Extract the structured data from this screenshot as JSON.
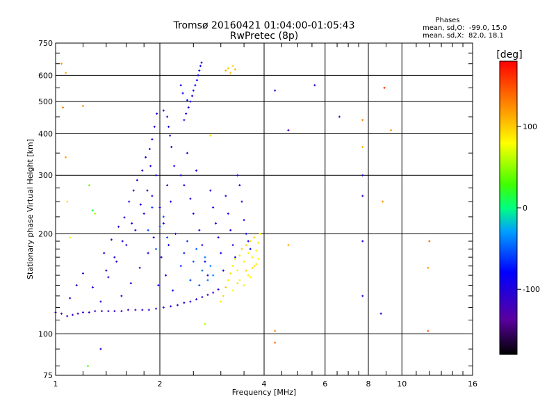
{
  "chart_data": {
    "type": "scatter",
    "title": "Tromsø 20160421 01:04:00-01:05:43",
    "subtitle": "RwPretec (8p)",
    "xlabel": "Frequency [MHz]",
    "ylabel": "Stationary phase Virtual Height [km]",
    "x_scale": "log",
    "y_scale": "log",
    "xlim": [
      1,
      16
    ],
    "ylim": [
      75,
      750
    ],
    "x_ticks": [
      1,
      2,
      4,
      8,
      16
    ],
    "x_minor_ticks": [
      6,
      10
    ],
    "y_ticks": [
      75,
      100,
      200,
      300,
      400,
      500,
      600,
      750
    ],
    "grid": true,
    "stats": {
      "heading": "Phases",
      "line1": "mean, sd,O:  -99.0, 15.0",
      "line2": "mean, sd,X:  82.0, 18.1"
    },
    "colorbar": {
      "label": "[deg]",
      "range": [
        -180,
        180
      ],
      "ticks": [
        100,
        0,
        -100
      ]
    },
    "series": [
      {
        "marker_color": "phase",
        "points": [
          [
            1.0,
            116,
            -115
          ],
          [
            1.04,
            115,
            -118
          ],
          [
            1.08,
            113,
            -120
          ],
          [
            1.12,
            114,
            -117
          ],
          [
            1.16,
            115,
            -116
          ],
          [
            1.2,
            116,
            -114
          ],
          [
            1.25,
            116,
            -112
          ],
          [
            1.3,
            117,
            -115
          ],
          [
            1.36,
            117,
            -113
          ],
          [
            1.42,
            117,
            -111
          ],
          [
            1.48,
            117,
            -114
          ],
          [
            1.55,
            117,
            -112
          ],
          [
            1.62,
            118,
            -110
          ],
          [
            1.7,
            118,
            -113
          ],
          [
            1.78,
            118,
            -111
          ],
          [
            1.86,
            118,
            -109
          ],
          [
            1.95,
            119,
            -112
          ],
          [
            2.05,
            120,
            -110
          ],
          [
            2.15,
            121,
            -108
          ],
          [
            2.25,
            122,
            -110
          ],
          [
            2.35,
            124,
            -107
          ],
          [
            2.45,
            125,
            -109
          ],
          [
            2.55,
            127,
            -106
          ],
          [
            2.65,
            129,
            -108
          ],
          [
            2.75,
            131,
            -105
          ],
          [
            2.85,
            133,
            -107
          ],
          [
            2.95,
            136,
            -104
          ],
          [
            1.1,
            128,
            -110
          ],
          [
            1.15,
            140,
            -105
          ],
          [
            1.2,
            152,
            -108
          ],
          [
            1.28,
            138,
            -100
          ],
          [
            1.35,
            125,
            -112
          ],
          [
            1.42,
            148,
            -103
          ],
          [
            1.5,
            165,
            -106
          ],
          [
            1.55,
            130,
            -98
          ],
          [
            1.6,
            185,
            -104
          ],
          [
            1.65,
            142,
            -100
          ],
          [
            1.7,
            205,
            -102
          ],
          [
            1.75,
            158,
            -97
          ],
          [
            1.8,
            230,
            -105
          ],
          [
            1.85,
            175,
            -96
          ],
          [
            1.9,
            260,
            -103
          ],
          [
            1.92,
            195,
            -95
          ],
          [
            1.95,
            300,
            -100
          ],
          [
            1.98,
            140,
            -90
          ],
          [
            2.0,
            240,
            -98
          ],
          [
            2.02,
            170,
            -88
          ],
          [
            2.05,
            215,
            -92
          ],
          [
            2.08,
            150,
            -85
          ],
          [
            2.1,
            280,
            -96
          ],
          [
            2.12,
            185,
            -84
          ],
          [
            2.15,
            250,
            -94
          ],
          [
            2.18,
            135,
            -82
          ],
          [
            2.2,
            320,
            -99
          ],
          [
            2.22,
            200,
            -86
          ],
          [
            1.38,
            175,
            -104
          ],
          [
            1.45,
            192,
            -108
          ],
          [
            1.52,
            210,
            -102
          ],
          [
            1.58,
            224,
            -100
          ],
          [
            1.63,
            250,
            -106
          ],
          [
            1.68,
            270,
            -101
          ],
          [
            1.72,
            290,
            -99
          ],
          [
            1.78,
            310,
            -103
          ],
          [
            1.82,
            340,
            -98
          ],
          [
            1.87,
            360,
            -100
          ],
          [
            1.9,
            385,
            -97
          ],
          [
            1.93,
            420,
            -96
          ],
          [
            1.96,
            460,
            -98
          ],
          [
            1.88,
            320,
            -94
          ],
          [
            1.84,
            270,
            -92
          ],
          [
            1.76,
            245,
            -95
          ],
          [
            1.66,
            215,
            -97
          ],
          [
            1.56,
            190,
            -99
          ],
          [
            1.48,
            170,
            -101
          ],
          [
            1.4,
            155,
            -103
          ],
          [
            2.3,
            300,
            -102
          ],
          [
            2.35,
            280,
            -100
          ],
          [
            2.4,
            350,
            -101
          ],
          [
            2.45,
            255,
            -98
          ],
          [
            2.5,
            230,
            -96
          ],
          [
            2.55,
            310,
            -99
          ],
          [
            2.6,
            205,
            -94
          ],
          [
            2.65,
            185,
            -92
          ],
          [
            2.7,
            165,
            -90
          ],
          [
            2.75,
            150,
            -88
          ],
          [
            2.8,
            270,
            -97
          ],
          [
            2.85,
            240,
            -95
          ],
          [
            2.9,
            215,
            -93
          ],
          [
            2.95,
            195,
            -91
          ],
          [
            3.0,
            175,
            -89
          ],
          [
            3.05,
            155,
            -86
          ],
          [
            3.1,
            260,
            -98
          ],
          [
            3.15,
            230,
            -96
          ],
          [
            3.2,
            205,
            -94
          ],
          [
            3.25,
            185,
            -92
          ],
          [
            3.3,
            170,
            -90
          ],
          [
            3.35,
            300,
            -99
          ],
          [
            3.4,
            280,
            -97
          ],
          [
            3.45,
            250,
            -95
          ],
          [
            3.5,
            220,
            -93
          ],
          [
            3.55,
            200,
            -91
          ],
          [
            3.6,
            190,
            -89
          ],
          [
            3.65,
            180,
            -87
          ],
          [
            2.3,
            160,
            -70
          ],
          [
            2.35,
            175,
            -65
          ],
          [
            2.4,
            190,
            -60
          ],
          [
            2.45,
            145,
            -55
          ],
          [
            2.5,
            165,
            -50
          ],
          [
            2.55,
            180,
            -48
          ],
          [
            2.6,
            140,
            -52
          ],
          [
            2.65,
            155,
            -45
          ],
          [
            2.7,
            170,
            -42
          ],
          [
            2.75,
            145,
            -40
          ],
          [
            2.8,
            160,
            -38
          ],
          [
            2.85,
            150,
            -36
          ],
          [
            2.0,
            210,
            -62
          ],
          [
            2.05,
            225,
            -58
          ],
          [
            2.1,
            195,
            -55
          ],
          [
            1.9,
            240,
            -60
          ],
          [
            1.85,
            205,
            -57
          ],
          [
            1.95,
            180,
            -50
          ],
          [
            2.35,
            440,
            -95
          ],
          [
            2.38,
            460,
            -93
          ],
          [
            2.42,
            480,
            -92
          ],
          [
            2.45,
            500,
            -90
          ],
          [
            2.48,
            520,
            -89
          ],
          [
            2.5,
            540,
            -88
          ],
          [
            2.53,
            560,
            -87
          ],
          [
            2.56,
            580,
            -86
          ],
          [
            2.58,
            600,
            -85
          ],
          [
            2.6,
            620,
            -84
          ],
          [
            2.62,
            640,
            -83
          ],
          [
            2.64,
            655,
            -82
          ],
          [
            2.3,
            560,
            -80
          ],
          [
            2.33,
            530,
            -78
          ],
          [
            2.4,
            505,
            -76
          ],
          [
            2.1,
            450,
            -90
          ],
          [
            2.12,
            420,
            -92
          ],
          [
            2.14,
            395,
            -94
          ],
          [
            2.16,
            365,
            -96
          ],
          [
            2.05,
            470,
            -98
          ],
          [
            3.0,
            125,
            90
          ],
          [
            3.05,
            130,
            95
          ],
          [
            3.1,
            138,
            100
          ],
          [
            3.15,
            145,
            85
          ],
          [
            3.2,
            152,
            92
          ],
          [
            3.25,
            160,
            88
          ],
          [
            3.3,
            168,
            96
          ],
          [
            3.35,
            155,
            82
          ],
          [
            3.4,
            172,
            90
          ],
          [
            3.45,
            180,
            98
          ],
          [
            3.5,
            165,
            86
          ],
          [
            3.55,
            185,
            94
          ],
          [
            3.6,
            175,
            80
          ],
          [
            3.65,
            190,
            92
          ],
          [
            3.7,
            170,
            88
          ],
          [
            3.75,
            195,
            96
          ],
          [
            3.8,
            178,
            84
          ],
          [
            3.85,
            188,
            90
          ],
          [
            3.9,
            200,
            86
          ],
          [
            3.4,
            145,
            78
          ],
          [
            3.5,
            140,
            84
          ],
          [
            3.6,
            150,
            88
          ],
          [
            3.7,
            158,
            92
          ],
          [
            3.8,
            162,
            86
          ],
          [
            3.25,
            135,
            80
          ],
          [
            3.35,
            142,
            90
          ],
          [
            3.55,
            155,
            94
          ],
          [
            3.65,
            148,
            82
          ],
          [
            3.75,
            160,
            90
          ],
          [
            3.85,
            168,
            84
          ],
          [
            3.1,
            620,
            110
          ],
          [
            3.15,
            630,
            100
          ],
          [
            3.2,
            610,
            105
          ],
          [
            3.25,
            640,
            95
          ],
          [
            3.3,
            625,
            112
          ],
          [
            4.3,
            540,
            -110
          ],
          [
            5.6,
            560,
            -112
          ],
          [
            6.6,
            450,
            -115
          ],
          [
            7.7,
            300,
            -114
          ],
          [
            7.7,
            260,
            -118
          ],
          [
            7.7,
            190,
            -112
          ],
          [
            7.7,
            130,
            -110
          ],
          [
            8.7,
            115,
            -100
          ],
          [
            4.7,
            410,
            -120
          ],
          [
            1.04,
            650,
            120
          ],
          [
            1.07,
            610,
            110
          ],
          [
            1.05,
            480,
            130
          ],
          [
            1.2,
            485,
            125
          ],
          [
            1.07,
            340,
            115
          ],
          [
            1.08,
            250,
            90
          ],
          [
            1.25,
            280,
            40
          ],
          [
            1.1,
            195,
            75
          ],
          [
            1.28,
            235,
            10
          ],
          [
            1.3,
            230,
            55
          ],
          [
            1.24,
            80,
            30
          ],
          [
            1.35,
            90,
            -110
          ],
          [
            2.8,
            395,
            95
          ],
          [
            7.7,
            365,
            110
          ],
          [
            7.7,
            440,
            130
          ],
          [
            8.9,
            550,
            160
          ],
          [
            9.3,
            410,
            120
          ],
          [
            8.8,
            250,
            120
          ],
          [
            12.0,
            190,
            140
          ],
          [
            11.9,
            158,
            120
          ],
          [
            4.3,
            102,
            130
          ],
          [
            4.3,
            94,
            140
          ],
          [
            11.9,
            102,
            150
          ],
          [
            4.7,
            185,
            115
          ],
          [
            2.7,
            107,
            60
          ]
        ]
      }
    ]
  }
}
